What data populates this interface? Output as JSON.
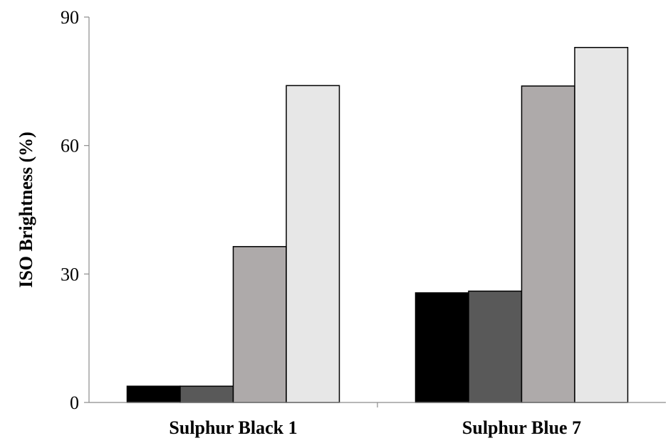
{
  "chart_data": {
    "type": "bar",
    "categories": [
      "Sulphur Black 1",
      "Sulphur Blue 7"
    ],
    "series": [
      {
        "values": [
          3.8,
          25.6
        ],
        "color": "#000000"
      },
      {
        "values": [
          3.8,
          26.0
        ],
        "color": "#595959"
      },
      {
        "values": [
          36.4,
          73.9
        ],
        "color": "#aeaaaa"
      },
      {
        "values": [
          74.0,
          82.9
        ],
        "color": "#e7e7e7"
      }
    ],
    "title": "",
    "xlabel": "",
    "ylabel": "ISO Brightness (%)",
    "ylim": [
      0,
      90
    ],
    "yticks": [
      0,
      30,
      60,
      90
    ],
    "ytick_labels": [
      "0",
      "30",
      "60",
      "90"
    ],
    "grid": false,
    "legend": "none"
  }
}
